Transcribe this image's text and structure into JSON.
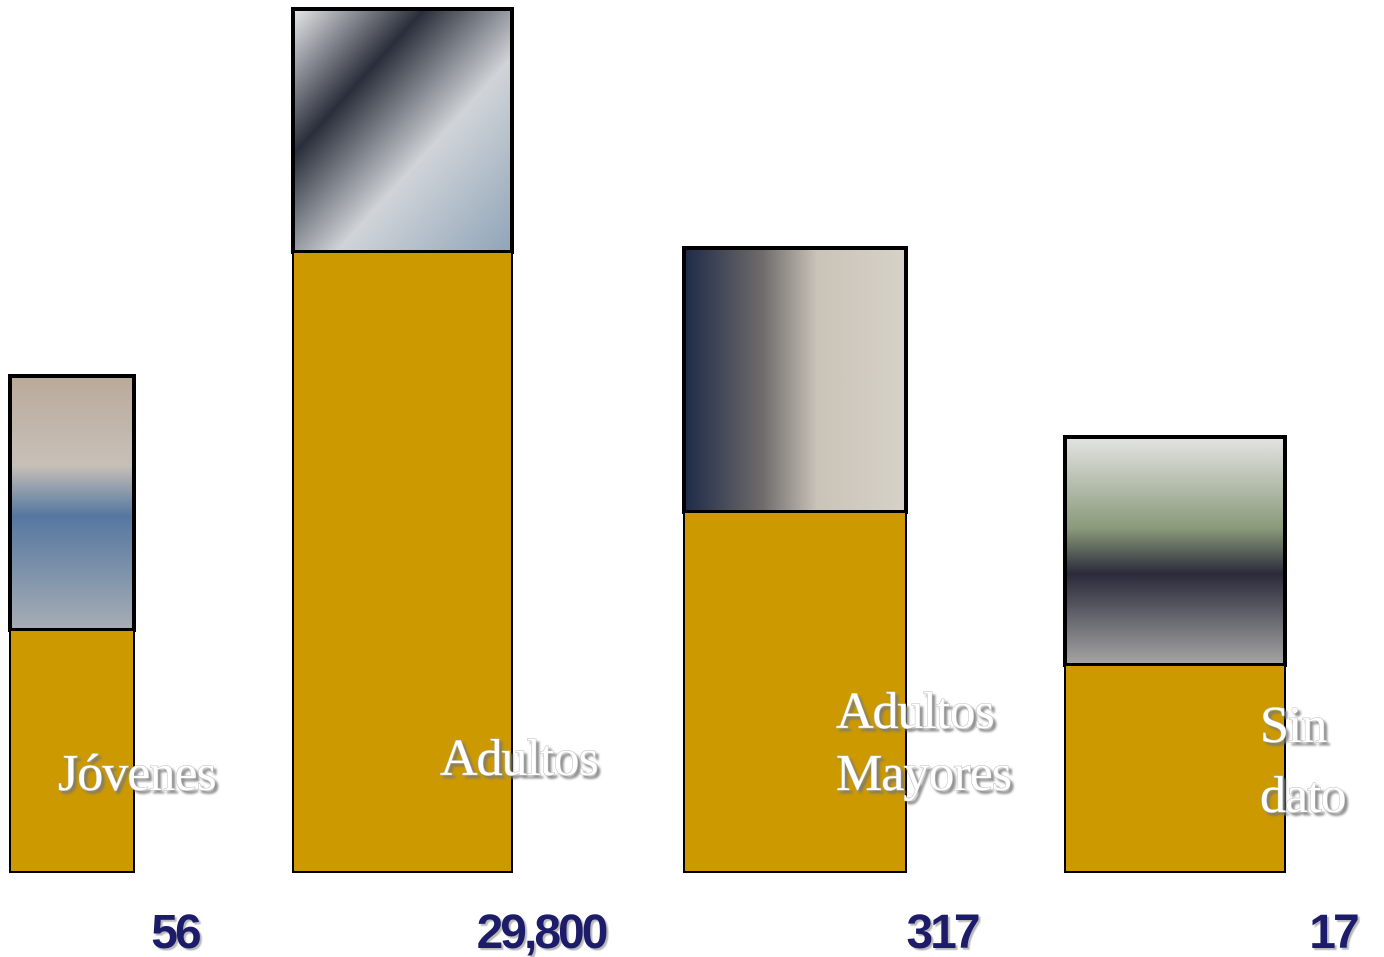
{
  "items": [
    {
      "label": [
        "Jóvenes"
      ],
      "value": "56"
    },
    {
      "label": [
        "Adultos"
      ],
      "value": "29,800"
    },
    {
      "label": [
        "Adultos",
        "Mayores"
      ],
      "value": "317"
    },
    {
      "label": [
        "Sin",
        "dato"
      ],
      "value": "17"
    }
  ]
}
